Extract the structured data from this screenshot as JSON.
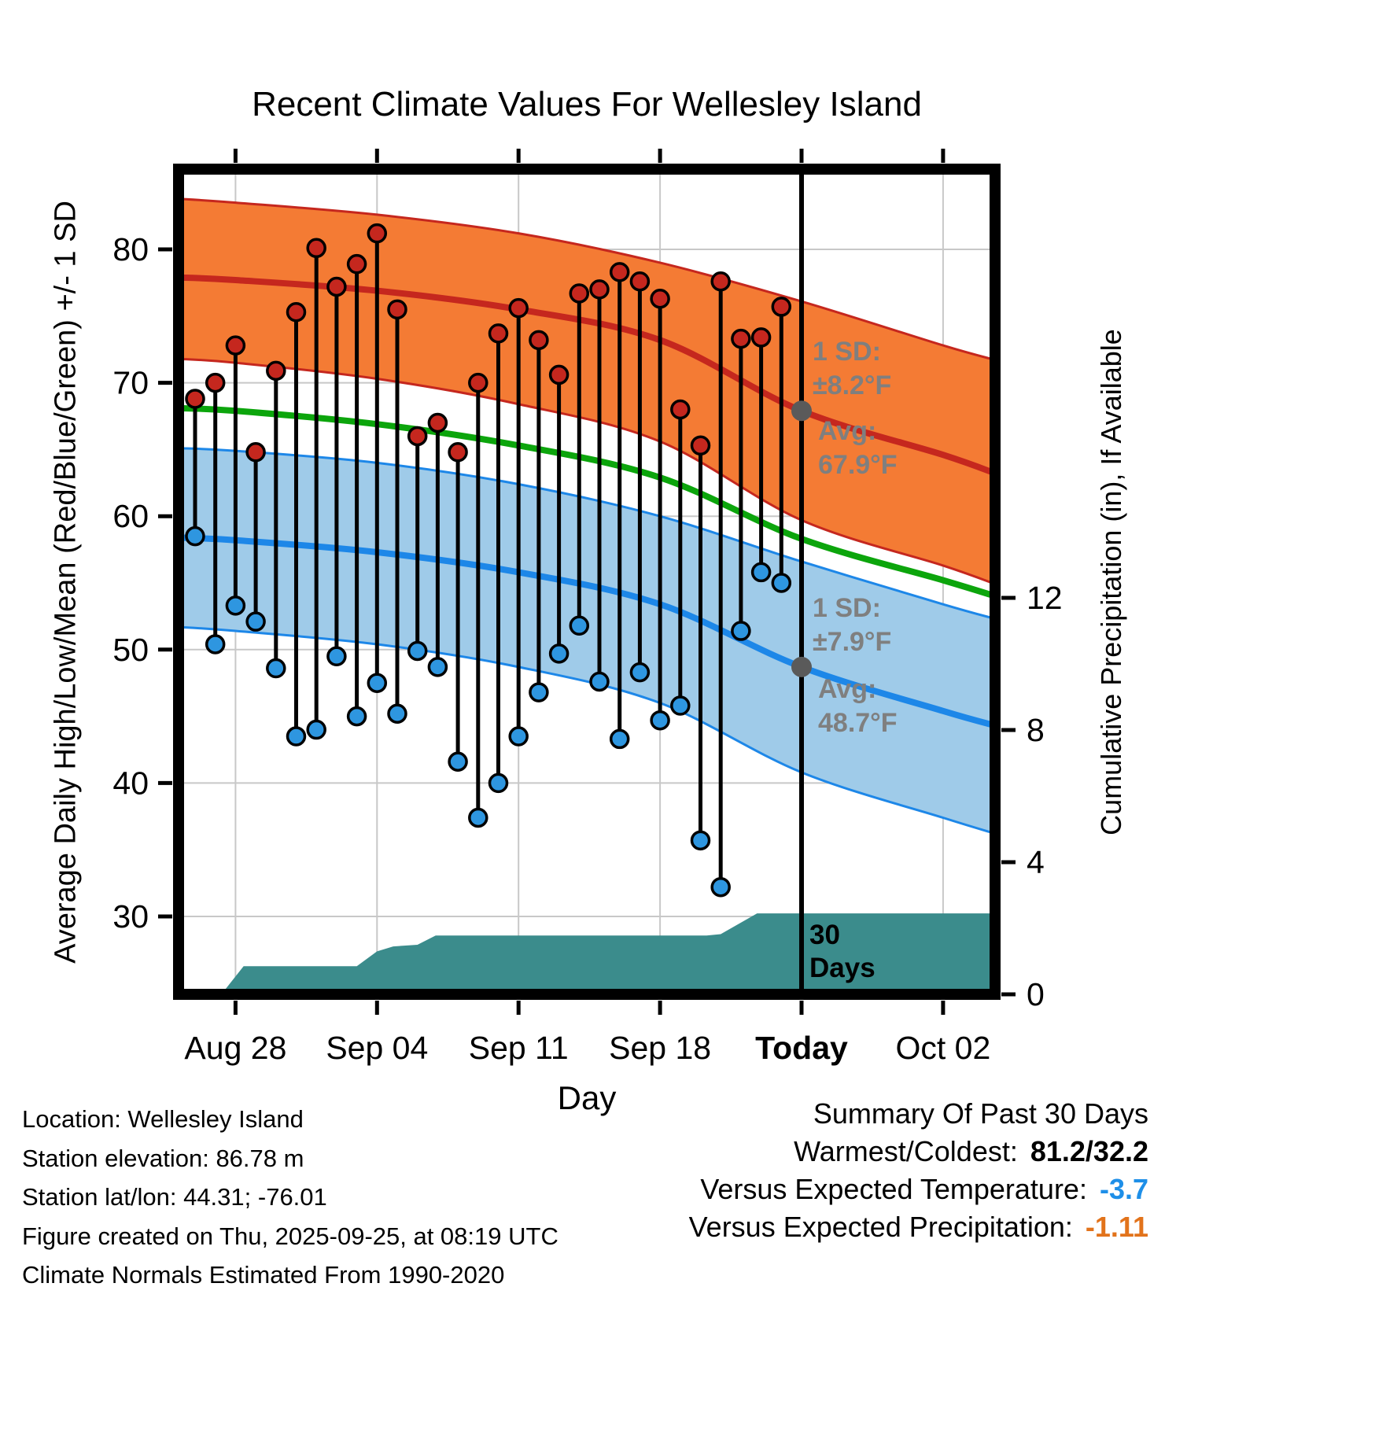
{
  "chart_data": {
    "type": "line",
    "title": "Recent Climate Values For Wellesley Island",
    "xlabel": "Day",
    "ylabel_left": "Average Daily High/Low/Mean (Red/Blue/Green) +/- 1 SD",
    "ylabel_right": "Cumulative Precipitation (in), If Available",
    "ylim_left_F": [
      24,
      86
    ],
    "ylim_right_in": [
      0,
      12
    ],
    "grid": true,
    "axes": {
      "left_ticks": [
        80,
        70,
        60,
        50,
        40,
        30
      ],
      "right_ticks": [
        12,
        8,
        4,
        0
      ],
      "x_ticks": [
        {
          "label": "Aug 28",
          "day": 2
        },
        {
          "label": "Sep 04",
          "day": 9
        },
        {
          "label": "Sep 11",
          "day": 16
        },
        {
          "label": "Sep 18",
          "day": 23
        },
        {
          "label": "Today",
          "day": 30,
          "bold": true
        },
        {
          "label": "Oct 02",
          "day": 37
        }
      ]
    },
    "daily": [
      {
        "date": "Aug 26",
        "high": 68.8,
        "low": 58.5
      },
      {
        "date": "Aug 27",
        "high": 70.0,
        "low": 50.4
      },
      {
        "date": "Aug 28",
        "high": 72.8,
        "low": 53.3
      },
      {
        "date": "Aug 29",
        "high": 64.8,
        "low": 52.1
      },
      {
        "date": "Aug 30",
        "high": 70.9,
        "low": 48.6
      },
      {
        "date": "Aug 31",
        "high": 75.3,
        "low": 43.5
      },
      {
        "date": "Sep 01",
        "high": 80.1,
        "low": 44.0
      },
      {
        "date": "Sep 02",
        "high": 77.2,
        "low": 49.5
      },
      {
        "date": "Sep 03",
        "high": 78.9,
        "low": 45.0
      },
      {
        "date": "Sep 04",
        "high": 81.2,
        "low": 47.5
      },
      {
        "date": "Sep 05",
        "high": 75.5,
        "low": 45.2
      },
      {
        "date": "Sep 06",
        "high": 66.0,
        "low": 49.9
      },
      {
        "date": "Sep 07",
        "high": 67.0,
        "low": 48.7
      },
      {
        "date": "Sep 08",
        "high": 64.8,
        "low": 41.6
      },
      {
        "date": "Sep 09",
        "high": 70.0,
        "low": 37.4
      },
      {
        "date": "Sep 10",
        "high": 73.7,
        "low": 40.0
      },
      {
        "date": "Sep 11",
        "high": 75.6,
        "low": 43.5
      },
      {
        "date": "Sep 12",
        "high": 73.2,
        "low": 46.8
      },
      {
        "date": "Sep 13",
        "high": 70.6,
        "low": 49.7
      },
      {
        "date": "Sep 14",
        "high": 76.7,
        "low": 51.8
      },
      {
        "date": "Sep 15",
        "high": 77.0,
        "low": 47.6
      },
      {
        "date": "Sep 16",
        "high": 78.3,
        "low": 43.3
      },
      {
        "date": "Sep 17",
        "high": 77.6,
        "low": 48.3
      },
      {
        "date": "Sep 18",
        "high": 76.3,
        "low": 44.7
      },
      {
        "date": "Sep 19",
        "high": 68.0,
        "low": 45.8
      },
      {
        "date": "Sep 20",
        "high": 65.3,
        "low": 35.7
      },
      {
        "date": "Sep 21",
        "high": 77.6,
        "low": 32.2
      },
      {
        "date": "Sep 22",
        "high": 73.3,
        "low": 51.4
      },
      {
        "date": "Sep 23",
        "high": 73.4,
        "low": 55.8
      },
      {
        "date": "Sep 24",
        "high": 75.7,
        "low": 55.0
      }
    ],
    "normals": {
      "x": [
        -0.9,
        2,
        9,
        16,
        23,
        30,
        37,
        39.6
      ],
      "high_upper": [
        83.8,
        83.5,
        82.6,
        81.2,
        79.0,
        76.1,
        72.8,
        71.7
      ],
      "high_avg": [
        77.9,
        77.7,
        76.9,
        75.5,
        73.2,
        67.9,
        64.6,
        63.2
      ],
      "high_lower": [
        71.8,
        71.5,
        70.3,
        68.4,
        65.6,
        59.7,
        56.3,
        54.9
      ],
      "mean": [
        68.1,
        67.9,
        66.9,
        65.3,
        62.9,
        58.3,
        55.2,
        54.0
      ],
      "low_upper": [
        65.1,
        64.9,
        64.0,
        62.4,
        60.0,
        56.6,
        53.4,
        52.3
      ],
      "low_avg": [
        58.4,
        58.2,
        57.3,
        55.8,
        53.4,
        48.7,
        45.4,
        44.3
      ],
      "low_lower": [
        51.7,
        51.4,
        50.4,
        48.7,
        46.0,
        40.8,
        37.4,
        36.2
      ]
    },
    "precip_cumulative_in": [
      [
        1.3,
        0
      ],
      [
        2.4,
        0.85
      ],
      [
        8.0,
        0.85
      ],
      [
        9.0,
        1.3
      ],
      [
        9.8,
        1.45
      ],
      [
        11.0,
        1.5
      ],
      [
        11.9,
        1.78
      ],
      [
        25.3,
        1.78
      ],
      [
        26.0,
        1.82
      ],
      [
        27.8,
        2.45
      ],
      [
        39.6,
        2.45
      ]
    ],
    "today_day": 30,
    "stats": {
      "high_avg_F": 67.9,
      "high_sd_F": 8.2,
      "low_avg_F": 48.7,
      "low_sd_F": 7.9
    },
    "colors": {
      "grid": "#C8C8C8",
      "red": "#C5271E",
      "red_dot": "#C5271E",
      "orange_band": "#F47B34",
      "blue": "#1D87E8",
      "blue_band": "#9FCBE9",
      "blue_dot": "#2E96E0",
      "green": "#0CA50C",
      "teal": "#3B8C8C",
      "gray": "#5A5A5A",
      "today_line": "#000000"
    }
  },
  "annotations": {
    "high_sd_line1": "1 SD:",
    "high_sd_line2": "±8.2°F",
    "high_avg_line1": "Avg:",
    "high_avg_line2": "67.9°F",
    "low_sd_line1": "1 SD:",
    "low_sd_line2": "±7.9°F",
    "low_avg_line1": "Avg:",
    "low_avg_line2": "48.7°F",
    "window_line1": "30",
    "window_line2": "Days"
  },
  "footer": {
    "lines": [
      "Location: Wellesley Island",
      "Station elevation: 86.78 m",
      "Station lat/lon: 44.31; -76.01",
      "Figure created on Thu, 2025-09-25, at 08:19 UTC",
      "Climate Normals Estimated From 1990-2020"
    ]
  },
  "summary": {
    "title": "Summary Of Past 30 Days",
    "rows": [
      {
        "label": "Warmest/Coldest:",
        "value": "81.2/32.2",
        "color": "#000000"
      },
      {
        "label": "Versus Expected Temperature:",
        "value": "-3.7",
        "color": "#1E8FE8"
      },
      {
        "label": "Versus Expected Precipitation:",
        "value": "-1.11",
        "color": "#E2731B"
      }
    ]
  }
}
